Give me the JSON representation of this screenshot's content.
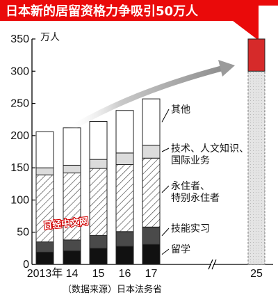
{
  "title": "日本新的居留资格力争吸引50万人",
  "unit_label": "万人",
  "source_note": "（数据来源）日本法务省",
  "watermark": "日经中文网",
  "colors": {
    "title_bg": "#ea0a0a",
    "target_fill": "#d62a2a",
    "target_stub": "#d8d8d8",
    "arrow": "#9a9a9a",
    "student": "#111111",
    "technical_intern": "#4a4a4a",
    "light_gray_segment": "#dcdcdc",
    "other": "#ffffff"
  },
  "chart_data": {
    "type": "bar",
    "stacked": true,
    "categories": [
      "2013年",
      "14",
      "15",
      "16",
      "17"
    ],
    "series": [
      {
        "name": "留学",
        "values": [
          19,
          21,
          25,
          28,
          31
        ]
      },
      {
        "name": "技能实习",
        "values": [
          16,
          17,
          20,
          23,
          27
        ]
      },
      {
        "name": "永住者、特别永住者",
        "values": [
          104,
          104,
          104,
          104,
          107
        ]
      },
      {
        "name": "技术、人文知识、国际业务",
        "values": [
          11,
          12,
          14,
          18,
          20
        ]
      },
      {
        "name": "其他",
        "values": [
          56,
          58,
          59,
          66,
          72
        ]
      }
    ],
    "target": {
      "category": "25",
      "existing": 300,
      "added": 50,
      "total": 350
    },
    "ylim": [
      0,
      350
    ],
    "yticks": [
      0,
      50,
      100,
      150,
      200,
      250,
      300,
      350
    ],
    "ylabel": "万人",
    "xlabel": "",
    "grid": false,
    "legend": "right"
  }
}
